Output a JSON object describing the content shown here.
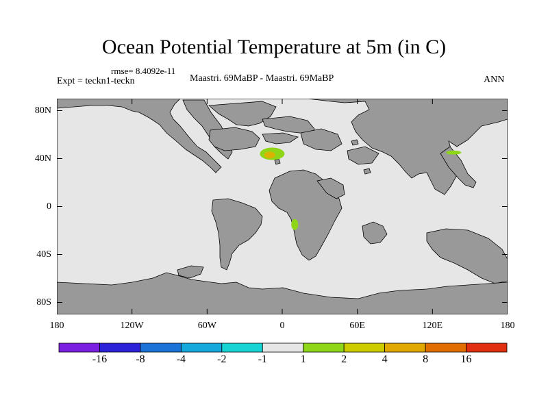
{
  "title": "Ocean Potential Temperature at 5m (in C)",
  "rmse_label": "rmse= 8.4092e-11",
  "expt_label": "Expt = teckn1-teckn",
  "comparison_label": "Maastri.  69MaBP - Maastri.  69MaBP",
  "period_label": "ANN",
  "map": {
    "lon_range": [
      -180,
      180
    ],
    "lat_range": [
      -90,
      90
    ],
    "lon_ticks": [
      {
        "value": -180,
        "label": "180"
      },
      {
        "value": -120,
        "label": "120W"
      },
      {
        "value": -60,
        "label": "60W"
      },
      {
        "value": 0,
        "label": "0"
      },
      {
        "value": 60,
        "label": "60E"
      },
      {
        "value": 120,
        "label": "120E"
      },
      {
        "value": 180,
        "label": "180"
      }
    ],
    "lat_ticks": [
      {
        "value": 80,
        "label": "80N"
      },
      {
        "value": 40,
        "label": "40N"
      },
      {
        "value": 0,
        "label": "0"
      },
      {
        "value": -40,
        "label": "40S"
      },
      {
        "value": -80,
        "label": "80S"
      }
    ],
    "ocean_color": "#e6e6e6",
    "land_color": "#999999",
    "anomalies": [
      {
        "name": "mediterranean-anomaly",
        "lon": -10,
        "lat": 43,
        "category": "4 to 8",
        "color": "#d9b300"
      },
      {
        "name": "mediterranean-anomaly-halo",
        "lon": -8,
        "lat": 44,
        "category": "2 to 4",
        "color": "#cccc00"
      },
      {
        "name": "west-africa-anomaly",
        "lon": 10,
        "lat": -15,
        "category": "1 to 2",
        "color": "#8fd619"
      },
      {
        "name": "pacific-anomaly",
        "lon": 137,
        "lat": 45,
        "category": "1 to 2",
        "color": "#8fd619"
      }
    ]
  },
  "colorbar": {
    "colors": [
      "#7b1fe0",
      "#2c23d9",
      "#1a73d6",
      "#15a8dc",
      "#16d4d4",
      "#e6e6e6",
      "#8fd619",
      "#cccc00",
      "#e0a800",
      "#e06e00",
      "#e03010"
    ],
    "labels": [
      "-16",
      "-8",
      "-4",
      "-2",
      "-1",
      "1",
      "2",
      "4",
      "8",
      "16"
    ]
  }
}
